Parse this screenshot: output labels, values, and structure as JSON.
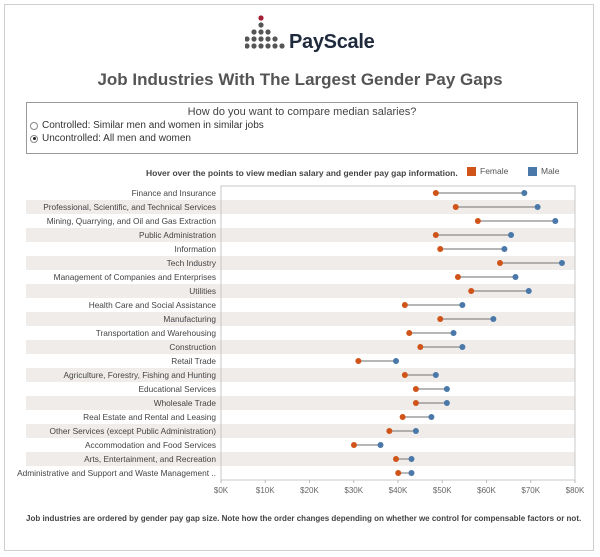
{
  "brand": {
    "name": "PayScale"
  },
  "title": "Job Industries With The Largest Gender Pay Gaps",
  "filter": {
    "question": "How do you want to compare median salaries?",
    "options": [
      {
        "label": "Controlled: Similar men and women in similar jobs",
        "selected": false
      },
      {
        "label": "Uncontrolled: All men and women",
        "selected": true
      }
    ]
  },
  "hover_note": "Hover over the points to view median salary and gender pay gap information.",
  "footnote": "Job industries are ordered by gender pay gap size. Note how the order changes depending on whether we control for compensable factors or not.",
  "colors": {
    "female": "#d0541a",
    "male": "#4a78a8",
    "connector": "#8a8a8a",
    "stripe": "#f0ece9",
    "brand_dot": "#a31f34",
    "brand_grey": "#555555"
  },
  "chart_data": {
    "type": "dumbbell",
    "x": {
      "min": 0,
      "max": 80000,
      "ticks": [
        "$0K",
        "$10K",
        "$20K",
        "$30K",
        "$40K",
        "$50K",
        "$60K",
        "$70K",
        "$80K"
      ]
    },
    "legend": {
      "position": "top-right",
      "entries": [
        {
          "name": "Female",
          "color": "#d0541a"
        },
        {
          "name": "Male",
          "color": "#4a78a8"
        }
      ]
    },
    "series": [
      "Female",
      "Male"
    ],
    "rows": [
      {
        "industry": "Finance and Insurance",
        "female": 49000,
        "male": 69000
      },
      {
        "industry": "Professional, Scientific, and Technical Services",
        "female": 53500,
        "male": 72000
      },
      {
        "industry": "Mining, Quarrying, and Oil and Gas Extraction",
        "female": 58500,
        "male": 76000
      },
      {
        "industry": "Public Administration",
        "female": 49000,
        "male": 66000
      },
      {
        "industry": "Information",
        "female": 50000,
        "male": 64500
      },
      {
        "industry": "Tech Industry",
        "female": 63500,
        "male": 77500
      },
      {
        "industry": "Management of Companies and Enterprises",
        "female": 54000,
        "male": 67000
      },
      {
        "industry": "Utilities",
        "female": 57000,
        "male": 70000
      },
      {
        "industry": "Health Care and Social Assistance",
        "female": 42000,
        "male": 55000
      },
      {
        "industry": "Manufacturing",
        "female": 50000,
        "male": 62000
      },
      {
        "industry": "Transportation and Warehousing",
        "female": 43000,
        "male": 53000
      },
      {
        "industry": "Construction",
        "female": 45500,
        "male": 55000
      },
      {
        "industry": "Retail Trade",
        "female": 31500,
        "male": 40000
      },
      {
        "industry": "Agriculture, Forestry, Fishing and Hunting",
        "female": 42000,
        "male": 49000
      },
      {
        "industry": "Educational Services",
        "female": 44500,
        "male": 51500
      },
      {
        "industry": "Wholesale Trade",
        "female": 44500,
        "male": 51500
      },
      {
        "industry": "Real Estate and Rental and Leasing",
        "female": 41500,
        "male": 48000
      },
      {
        "industry": "Other Services (except Public Administration)",
        "female": 38500,
        "male": 44500
      },
      {
        "industry": "Accommodation and Food Services",
        "female": 30500,
        "male": 36500
      },
      {
        "industry": "Arts, Entertainment, and Recreation",
        "female": 40000,
        "male": 43500
      },
      {
        "industry": "Administrative and Support and Waste Management ..",
        "female": 40500,
        "male": 43500
      }
    ]
  }
}
